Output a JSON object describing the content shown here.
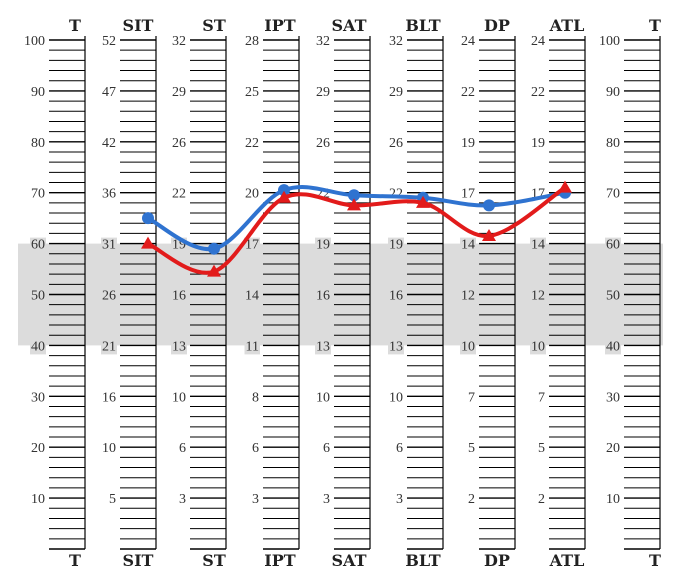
{
  "chart_data": {
    "type": "line",
    "title": "",
    "shaded_band": [
      40,
      60
    ],
    "t_range": [
      0,
      100
    ],
    "columns": [
      {
        "key": "T_left",
        "header": "T",
        "footer": "T",
        "labels": [
          [
            "100",
            100
          ],
          [
            "90",
            90
          ],
          [
            "80",
            80
          ],
          [
            "70",
            70
          ],
          [
            "60",
            60
          ],
          [
            "50",
            50
          ],
          [
            "40",
            40
          ],
          [
            "30",
            30
          ],
          [
            "20",
            20
          ],
          [
            "10",
            10
          ]
        ]
      },
      {
        "key": "SIT",
        "header": "SIT",
        "footer": "SIT",
        "labels": [
          [
            "52",
            100
          ],
          [
            "47",
            90
          ],
          [
            "42",
            80
          ],
          [
            "36",
            70
          ],
          [
            "31",
            60
          ],
          [
            "26",
            50
          ],
          [
            "21",
            40
          ],
          [
            "16",
            30
          ],
          [
            "10",
            20
          ],
          [
            "5",
            10
          ]
        ]
      },
      {
        "key": "ST",
        "header": "ST",
        "footer": "ST",
        "labels": [
          [
            "32",
            100
          ],
          [
            "29",
            90
          ],
          [
            "26",
            80
          ],
          [
            "22",
            70
          ],
          [
            "19",
            60
          ],
          [
            "16",
            50
          ],
          [
            "13",
            40
          ],
          [
            "10",
            30
          ],
          [
            "6",
            20
          ],
          [
            "3",
            10
          ]
        ]
      },
      {
        "key": "IPT",
        "header": "IPT",
        "footer": "IPT",
        "labels": [
          [
            "28",
            100
          ],
          [
            "25",
            90
          ],
          [
            "22",
            80
          ],
          [
            "20",
            70
          ],
          [
            "17",
            60
          ],
          [
            "14",
            50
          ],
          [
            "11",
            40
          ],
          [
            "8",
            30
          ],
          [
            "6",
            20
          ],
          [
            "3",
            10
          ]
        ]
      },
      {
        "key": "SAT",
        "header": "SAT",
        "footer": "SAT",
        "labels": [
          [
            "32",
            100
          ],
          [
            "29",
            90
          ],
          [
            "26",
            80
          ],
          [
            "22",
            70
          ],
          [
            "19",
            60
          ],
          [
            "16",
            50
          ],
          [
            "13",
            40
          ],
          [
            "10",
            30
          ],
          [
            "6",
            20
          ],
          [
            "3",
            10
          ]
        ]
      },
      {
        "key": "BLT",
        "header": "BLT",
        "footer": "BLT",
        "labels": [
          [
            "32",
            100
          ],
          [
            "29",
            90
          ],
          [
            "26",
            80
          ],
          [
            "22",
            70
          ],
          [
            "19",
            60
          ],
          [
            "16",
            50
          ],
          [
            "13",
            40
          ],
          [
            "10",
            30
          ],
          [
            "6",
            20
          ],
          [
            "3",
            10
          ]
        ]
      },
      {
        "key": "DP",
        "header": "DP",
        "footer": "DP",
        "labels": [
          [
            "24",
            100
          ],
          [
            "22",
            90
          ],
          [
            "19",
            80
          ],
          [
            "17",
            70
          ],
          [
            "14",
            60
          ],
          [
            "12",
            50
          ],
          [
            "10",
            40
          ],
          [
            "7",
            30
          ],
          [
            "5",
            20
          ],
          [
            "2",
            10
          ]
        ]
      },
      {
        "key": "ATL",
        "header": "ATL",
        "footer": "ATL",
        "labels": [
          [
            "24",
            100
          ],
          [
            "22",
            90
          ],
          [
            "19",
            80
          ],
          [
            "17",
            70
          ],
          [
            "14",
            60
          ],
          [
            "12",
            50
          ],
          [
            "10",
            40
          ],
          [
            "7",
            30
          ],
          [
            "5",
            20
          ],
          [
            "2",
            10
          ]
        ]
      },
      {
        "key": "T_right",
        "header": "T",
        "footer": "T",
        "labels": [
          [
            "100",
            100
          ],
          [
            "90",
            90
          ],
          [
            "80",
            80
          ],
          [
            "70",
            70
          ],
          [
            "60",
            60
          ],
          [
            "50",
            50
          ],
          [
            "40",
            40
          ],
          [
            "30",
            30
          ],
          [
            "20",
            20
          ],
          [
            "10",
            10
          ]
        ]
      }
    ],
    "categories": [
      "SIT",
      "ST",
      "IPT",
      "SAT",
      "BLT",
      "DP",
      "ATL"
    ],
    "series": [
      {
        "color": "#2f73d0",
        "marker": "circle",
        "values": [
          65,
          59,
          70.5,
          69.5,
          69,
          67.5,
          70
        ]
      },
      {
        "color": "#e21b1b",
        "marker": "triangle",
        "values": [
          60,
          54.5,
          69,
          67.5,
          68,
          61.5,
          71
        ]
      }
    ]
  }
}
